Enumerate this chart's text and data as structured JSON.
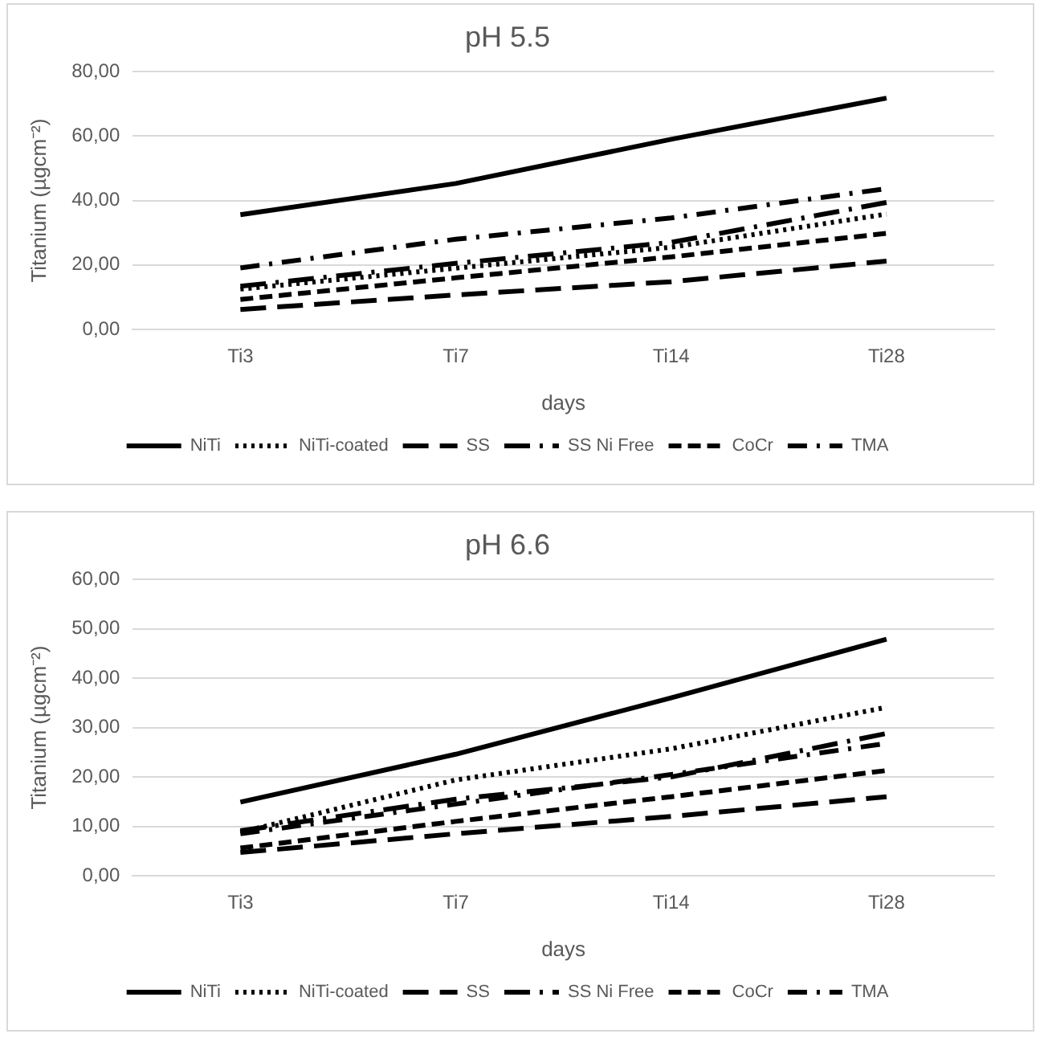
{
  "chart_data": [
    {
      "type": "line",
      "title": "pH 5.5",
      "xlabel": "days",
      "ylabel": "Titanium (µgcm⁻²)",
      "categories": [
        "Ti3",
        "Ti7",
        "Ti14",
        "Ti28"
      ],
      "series": [
        {
          "name": "NiTi",
          "color": "#000000",
          "line_style": "solid",
          "values": [
            35.6,
            45.3,
            59,
            71.8
          ]
        },
        {
          "name": "NiTi-coated",
          "color": "#000000",
          "line_style": "dotted",
          "values": [
            12.5,
            19,
            25.5,
            35.8
          ]
        },
        {
          "name": "SS",
          "color": "#000000",
          "line_style": "long-dash",
          "values": [
            6.2,
            10.7,
            14.8,
            21.2
          ]
        },
        {
          "name": "SS Ni Free",
          "color": "#000000",
          "line_style": "long-dash-dot",
          "values": [
            13.4,
            20.5,
            27,
            39.4
          ]
        },
        {
          "name": "CoCr",
          "color": "#000000",
          "line_style": "dashed",
          "values": [
            9.3,
            16,
            22.5,
            29.8
          ]
        },
        {
          "name": "TMA",
          "color": "#000000",
          "line_style": "dash-dot",
          "values": [
            19.1,
            28,
            34.6,
            43.7
          ]
        }
      ],
      "ylim": [
        0,
        80
      ],
      "yticks": [
        {
          "value": 0,
          "label": "0,00"
        },
        {
          "value": 20,
          "label": "20,00"
        },
        {
          "value": 40,
          "label": "40,00"
        },
        {
          "value": 60,
          "label": "60,00"
        },
        {
          "value": 80,
          "label": "80,00"
        }
      ],
      "grid": "y",
      "legend": "bottom",
      "marker": "none"
    },
    {
      "type": "line",
      "title": "pH 6.6",
      "xlabel": "days",
      "ylabel": "Titanium (µgcm⁻²)",
      "categories": [
        "Ti3",
        "Ti7",
        "Ti14",
        "Ti28"
      ],
      "series": [
        {
          "name": "NiTi",
          "color": "#000000",
          "line_style": "solid",
          "values": [
            14.9,
            24.6,
            36,
            47.9
          ]
        },
        {
          "name": "NiTi-coated",
          "color": "#000000",
          "line_style": "dotted",
          "values": [
            8.8,
            19.4,
            25.7,
            34.1
          ]
        },
        {
          "name": "SS",
          "color": "#000000",
          "line_style": "long-dash",
          "values": [
            4.7,
            8.5,
            12,
            16
          ]
        },
        {
          "name": "SS Ni Free",
          "color": "#000000",
          "line_style": "long-dash-dot",
          "values": [
            9.1,
            15.5,
            20,
            28.8
          ]
        },
        {
          "name": "CoCr",
          "color": "#000000",
          "line_style": "dashed",
          "values": [
            5.6,
            11,
            16,
            21.3
          ]
        },
        {
          "name": "TMA",
          "color": "#000000",
          "line_style": "dash-dot",
          "values": [
            8.5,
            14.5,
            20.5,
            26.8
          ]
        }
      ],
      "ylim": [
        0,
        60
      ],
      "yticks": [
        {
          "value": 0,
          "label": "0,00"
        },
        {
          "value": 10,
          "label": "10,00"
        },
        {
          "value": 20,
          "label": "20,00"
        },
        {
          "value": 30,
          "label": "30,00"
        },
        {
          "value": 40,
          "label": "40,00"
        },
        {
          "value": 50,
          "label": "50,00"
        },
        {
          "value": 60,
          "label": "60,00"
        }
      ],
      "grid": "y",
      "legend": "bottom",
      "marker": "none"
    }
  ]
}
